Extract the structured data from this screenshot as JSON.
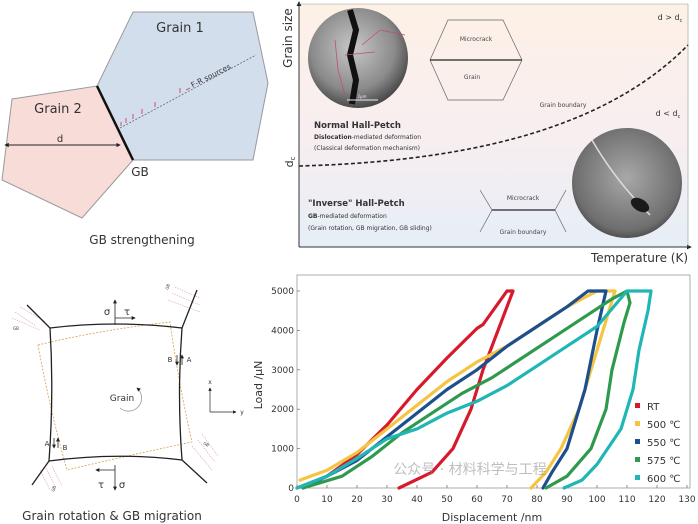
{
  "panel_gb_strengthening": {
    "grain1": "Grain 1",
    "grain2": "Grain 2",
    "fr_sources": "F-R sources",
    "d_label": "d",
    "gb_label": "GB",
    "caption": "GB strengthening",
    "colors": {
      "grain1": "#d3deec",
      "grain2": "#f8dcd8",
      "dislocation": "#d04060"
    }
  },
  "panel_hall_petch": {
    "y_axis": "Grain size",
    "x_axis": "Temperature (K)",
    "dc_label": "d",
    "dc_sub": "c",
    "region_upper": {
      "label": "d > d",
      "sub": "c"
    },
    "region_lower": {
      "label": "d < d",
      "sub": "c"
    },
    "normal": {
      "title": "Normal Hall-Petch",
      "line1_bold": "Dislocation",
      "line1_rest": "-mediated deformation",
      "line2": "(Classical deformation mechanism)"
    },
    "inverse": {
      "title": "\"Inverse\" Hall-Petch",
      "line1_bold": "GB",
      "line1_rest": "-mediated deformation",
      "line2": "(Grain rotation, GB  migration, GB sliding)"
    },
    "schematic_upper": {
      "microcrack": "Microcrack",
      "grain": "Grain",
      "boundary": "Grain boundary"
    },
    "schematic_lower": {
      "microcrack": "Microcrack",
      "boundary": "Grain boundary"
    },
    "scale_bar": "2μm"
  },
  "panel_rotation": {
    "sigma": "σ",
    "tau": "τ",
    "grain": "Grain",
    "a": "A",
    "b": "B",
    "axis_x": "x",
    "axis_y": "y",
    "gb_tag": "GB",
    "caption": "Grain rotation & GB migration"
  },
  "watermark": "公众号 · 材料科学与工程",
  "chart_data": {
    "type": "line",
    "title": "",
    "xlabel": "Displacement /nm",
    "ylabel": "Load /μN",
    "xlim": [
      0,
      130
    ],
    "ylim": [
      0,
      5000
    ],
    "xticks": [
      0,
      10,
      20,
      30,
      40,
      50,
      60,
      70,
      80,
      90,
      100,
      110,
      120,
      130
    ],
    "yticks": [
      0,
      1000,
      2000,
      3000,
      4000,
      5000
    ],
    "grid": false,
    "legend_position": "bottom-right",
    "series": [
      {
        "name": "RT",
        "color": "#d7192c",
        "marker": "square",
        "x": [
          0,
          10,
          20,
          30,
          40,
          50,
          60,
          62,
          70,
          72,
          67,
          62,
          58,
          52,
          45,
          34
        ],
        "y": [
          0,
          300,
          850,
          1600,
          2500,
          3300,
          4050,
          4150,
          5000,
          5000,
          4000,
          3000,
          2000,
          1000,
          400,
          0
        ]
      },
      {
        "name": "500 ℃",
        "color": "#f6c443",
        "marker": "circle",
        "x": [
          1,
          10,
          20,
          30,
          40,
          50,
          60,
          70,
          80,
          90,
          100,
          106,
          104,
          100,
          94,
          88,
          83,
          78
        ],
        "y": [
          200,
          450,
          900,
          1500,
          2100,
          2700,
          3200,
          3600,
          4100,
          4600,
          5000,
          5000,
          4500,
          3500,
          2000,
          1000,
          400,
          0
        ]
      },
      {
        "name": "550 ℃",
        "color": "#1d4f8f",
        "marker": "triangle-up",
        "x": [
          2,
          10,
          20,
          30,
          40,
          50,
          60,
          70,
          80,
          90,
          97,
          103,
          100,
          96,
          90,
          85,
          82
        ],
        "y": [
          0,
          300,
          700,
          1300,
          1900,
          2500,
          3000,
          3600,
          4100,
          4600,
          5000,
          5000,
          4000,
          2500,
          1000,
          400,
          0
        ]
      },
      {
        "name": "575 ℃",
        "color": "#2f9a4e",
        "marker": "triangle-down",
        "x": [
          2,
          15,
          25,
          35,
          45,
          55,
          65,
          75,
          85,
          95,
          105,
          110,
          111,
          109,
          105,
          103,
          98,
          90,
          83
        ],
        "y": [
          0,
          300,
          800,
          1400,
          1900,
          2400,
          2800,
          3300,
          3800,
          4300,
          4800,
          5000,
          4700,
          4200,
          3000,
          2000,
          1000,
          300,
          0
        ]
      },
      {
        "name": "600 ℃",
        "color": "#20b6b6",
        "marker": "diamond",
        "x": [
          0,
          10,
          20,
          30,
          40,
          50,
          60,
          70,
          80,
          90,
          100,
          110,
          118,
          117,
          114,
          112,
          108,
          100,
          95,
          89
        ],
        "y": [
          0,
          300,
          750,
          1250,
          1500,
          1900,
          2200,
          2600,
          3100,
          3600,
          4100,
          5000,
          5000,
          4500,
          3500,
          2500,
          1500,
          600,
          200,
          0
        ]
      }
    ]
  }
}
